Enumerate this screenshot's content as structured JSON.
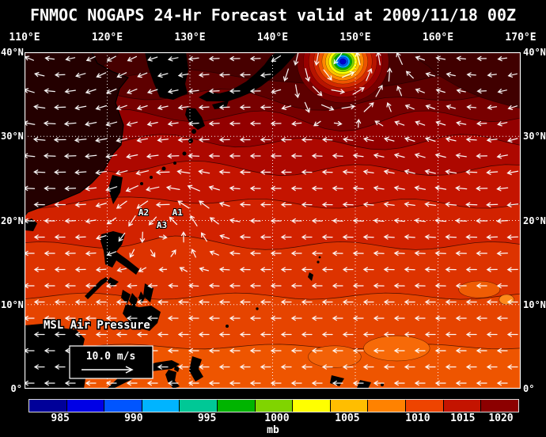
{
  "title": "FNMOC NOGAPS 24-Hr Forecast valid at 2009/11/18 00Z",
  "axes": {
    "lon_labels": [
      "110°E",
      "120°E",
      "130°E",
      "140°E",
      "150°E",
      "160°E",
      "170°E"
    ],
    "lat_labels": [
      "40°N",
      "30°N",
      "20°N",
      "10°N",
      "0°"
    ]
  },
  "map": {
    "overlay_label": "MSL Air Pressure",
    "wind_scale_label": "10.0 m/s",
    "lon_range": [
      110,
      170
    ],
    "lat_range": [
      0,
      40
    ],
    "storm_markers": [
      {
        "label": "A2",
        "lon": 124.4,
        "lat": 20.6
      },
      {
        "label": "A1",
        "lon": 128.5,
        "lat": 20.6
      },
      {
        "label": "A3",
        "lon": 126.6,
        "lat": 19.1
      }
    ]
  },
  "colorbar": {
    "unit": "mb",
    "tick_labels": [
      "985",
      "990",
      "995",
      "1000",
      "1005",
      "1010",
      "1015",
      "1020"
    ],
    "colors": [
      "#000099",
      "#0000e6",
      "#0055ff",
      "#00b4ff",
      "#00c896",
      "#00b400",
      "#80d400",
      "#ffff00",
      "#ffbe00",
      "#ff8200",
      "#ee4400",
      "#c41400",
      "#8c0000"
    ]
  },
  "field": {
    "base_color": "#ee5500",
    "bands": [
      {
        "lat": 5,
        "color": "#e64400",
        "amp": 3,
        "phase": 0.5
      },
      {
        "lat": 11,
        "color": "#dd3300",
        "amp": 4,
        "phase": 2.1
      },
      {
        "lat": 17,
        "color": "#d22200",
        "amp": 5,
        "phase": 4.0
      },
      {
        "lat": 22,
        "color": "#c41400",
        "amp": 6,
        "phase": 1.2
      },
      {
        "lat": 26,
        "color": "#ad0800",
        "amp": 7,
        "phase": 3.3
      },
      {
        "lat": 29.5,
        "color": "#930000",
        "amp": 8,
        "phase": 5.2,
        "bulge": 6
      },
      {
        "lat": 32.5,
        "color": "#780000",
        "amp": 8,
        "phase": 0.8,
        "bulge": 12
      },
      {
        "lat": 35,
        "color": "#5e0000",
        "amp": 7,
        "phase": 2.6,
        "bulge": 18
      },
      {
        "lat": 37.5,
        "color": "#470000",
        "amp": 5,
        "phase": 4.4,
        "bulge": 22
      }
    ],
    "low_center": {
      "lon": 148.5,
      "lat": 38.9
    },
    "low_ring_colors": [
      "#7a0000",
      "#990000",
      "#b81400",
      "#d42a00",
      "#ee5500",
      "#ff8800",
      "#ffc000",
      "#ffff00",
      "#7fd400",
      "#00b400",
      "#00a8ff",
      "#0050ff",
      "#0000cd"
    ],
    "patches": [
      {
        "lon": 155.0,
        "lat": 4.8,
        "rlon": 4.0,
        "rlat": 1.5,
        "color": "#f76a08"
      },
      {
        "lon": 147.5,
        "lat": 3.8,
        "rlon": 3.2,
        "rlat": 1.3,
        "color": "#f36208"
      },
      {
        "lon": 165.0,
        "lat": 11.8,
        "rlon": 2.5,
        "rlat": 1.0,
        "color": "#ef5c04"
      },
      {
        "lon": 168.3,
        "lat": 10.6,
        "rlon": 0.9,
        "rlat": 0.6,
        "color": "#ff8a1a"
      }
    ]
  }
}
